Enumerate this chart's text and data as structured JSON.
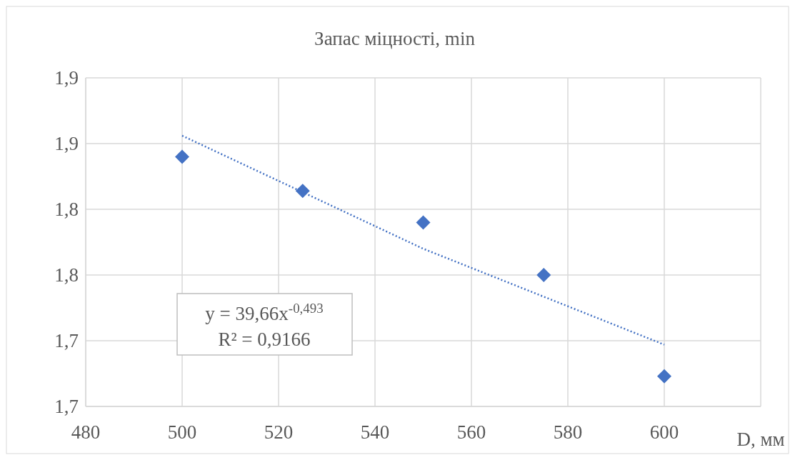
{
  "chart_data": {
    "type": "scatter",
    "title": "Запас міцності, min",
    "xlabel": "D, мм",
    "series": [
      {
        "color": "#4472c4",
        "x": [
          500,
          525,
          550,
          575,
          600
        ],
        "values": [
          1.89,
          1.864,
          1.84,
          1.8,
          1.723
        ],
        "marker": "diamond"
      },
      {
        "type": "line",
        "color": "#4472c4",
        "x": [
          500,
          550,
          600
        ],
        "values": [
          1.906,
          1.82,
          1.747
        ],
        "line_style": "dotted",
        "marker": "none"
      }
    ],
    "xlim": [
      480,
      620
    ],
    "xticks": [
      480,
      500,
      520,
      540,
      560,
      580,
      600,
      {
        "value": 620,
        "label": null
      }
    ],
    "ylim": [
      1.7,
      1.95
    ],
    "yticks": [
      {
        "value": 1.7,
        "label": "1,7"
      },
      {
        "value": 1.75,
        "label": "1,7"
      },
      {
        "value": 1.8,
        "label": "1,8"
      },
      {
        "value": 1.85,
        "label": "1,8"
      },
      {
        "value": 1.9,
        "label": "1,9"
      },
      {
        "value": 1.95,
        "label": "1,9"
      }
    ],
    "grid": true,
    "annotations": [
      "y = 39,66x$^{-0,493}$",
      "R² = 0,9166"
    ]
  }
}
